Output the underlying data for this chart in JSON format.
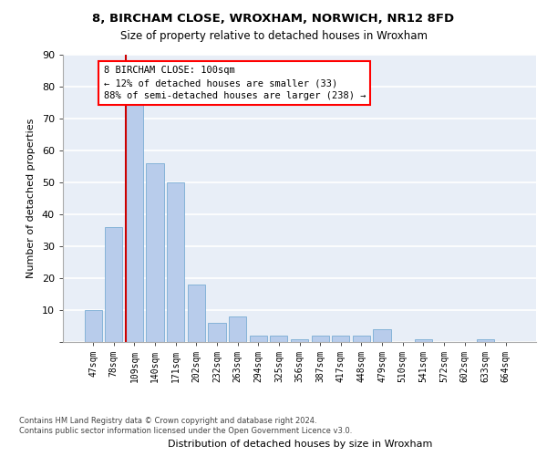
{
  "title1": "8, BIRCHAM CLOSE, WROXHAM, NORWICH, NR12 8FD",
  "title2": "Size of property relative to detached houses in Wroxham",
  "xlabel": "Distribution of detached houses by size in Wroxham",
  "ylabel": "Number of detached properties",
  "categories": [
    "47sqm",
    "78sqm",
    "109sqm",
    "140sqm",
    "171sqm",
    "202sqm",
    "232sqm",
    "263sqm",
    "294sqm",
    "325sqm",
    "356sqm",
    "387sqm",
    "417sqm",
    "448sqm",
    "479sqm",
    "510sqm",
    "541sqm",
    "572sqm",
    "602sqm",
    "633sqm",
    "664sqm"
  ],
  "values": [
    10,
    36,
    75,
    56,
    50,
    18,
    6,
    8,
    2,
    2,
    1,
    2,
    2,
    2,
    4,
    0,
    1,
    0,
    0,
    1,
    0
  ],
  "bar_color": "#b8cceb",
  "bar_edge_color": "#7aadd4",
  "highlight_bar_index": 2,
  "highlight_line_color": "#cc0000",
  "annotation_box_text": "8 BIRCHAM CLOSE: 100sqm\n← 12% of detached houses are smaller (33)\n88% of semi-detached houses are larger (238) →",
  "ylim": [
    0,
    90
  ],
  "yticks": [
    0,
    10,
    20,
    30,
    40,
    50,
    60,
    70,
    80,
    90
  ],
  "footer": "Contains HM Land Registry data © Crown copyright and database right 2024.\nContains public sector information licensed under the Open Government Licence v3.0.",
  "background_color": "#e8eef7",
  "grid_color": "#ffffff",
  "fig_bg": "#ffffff"
}
